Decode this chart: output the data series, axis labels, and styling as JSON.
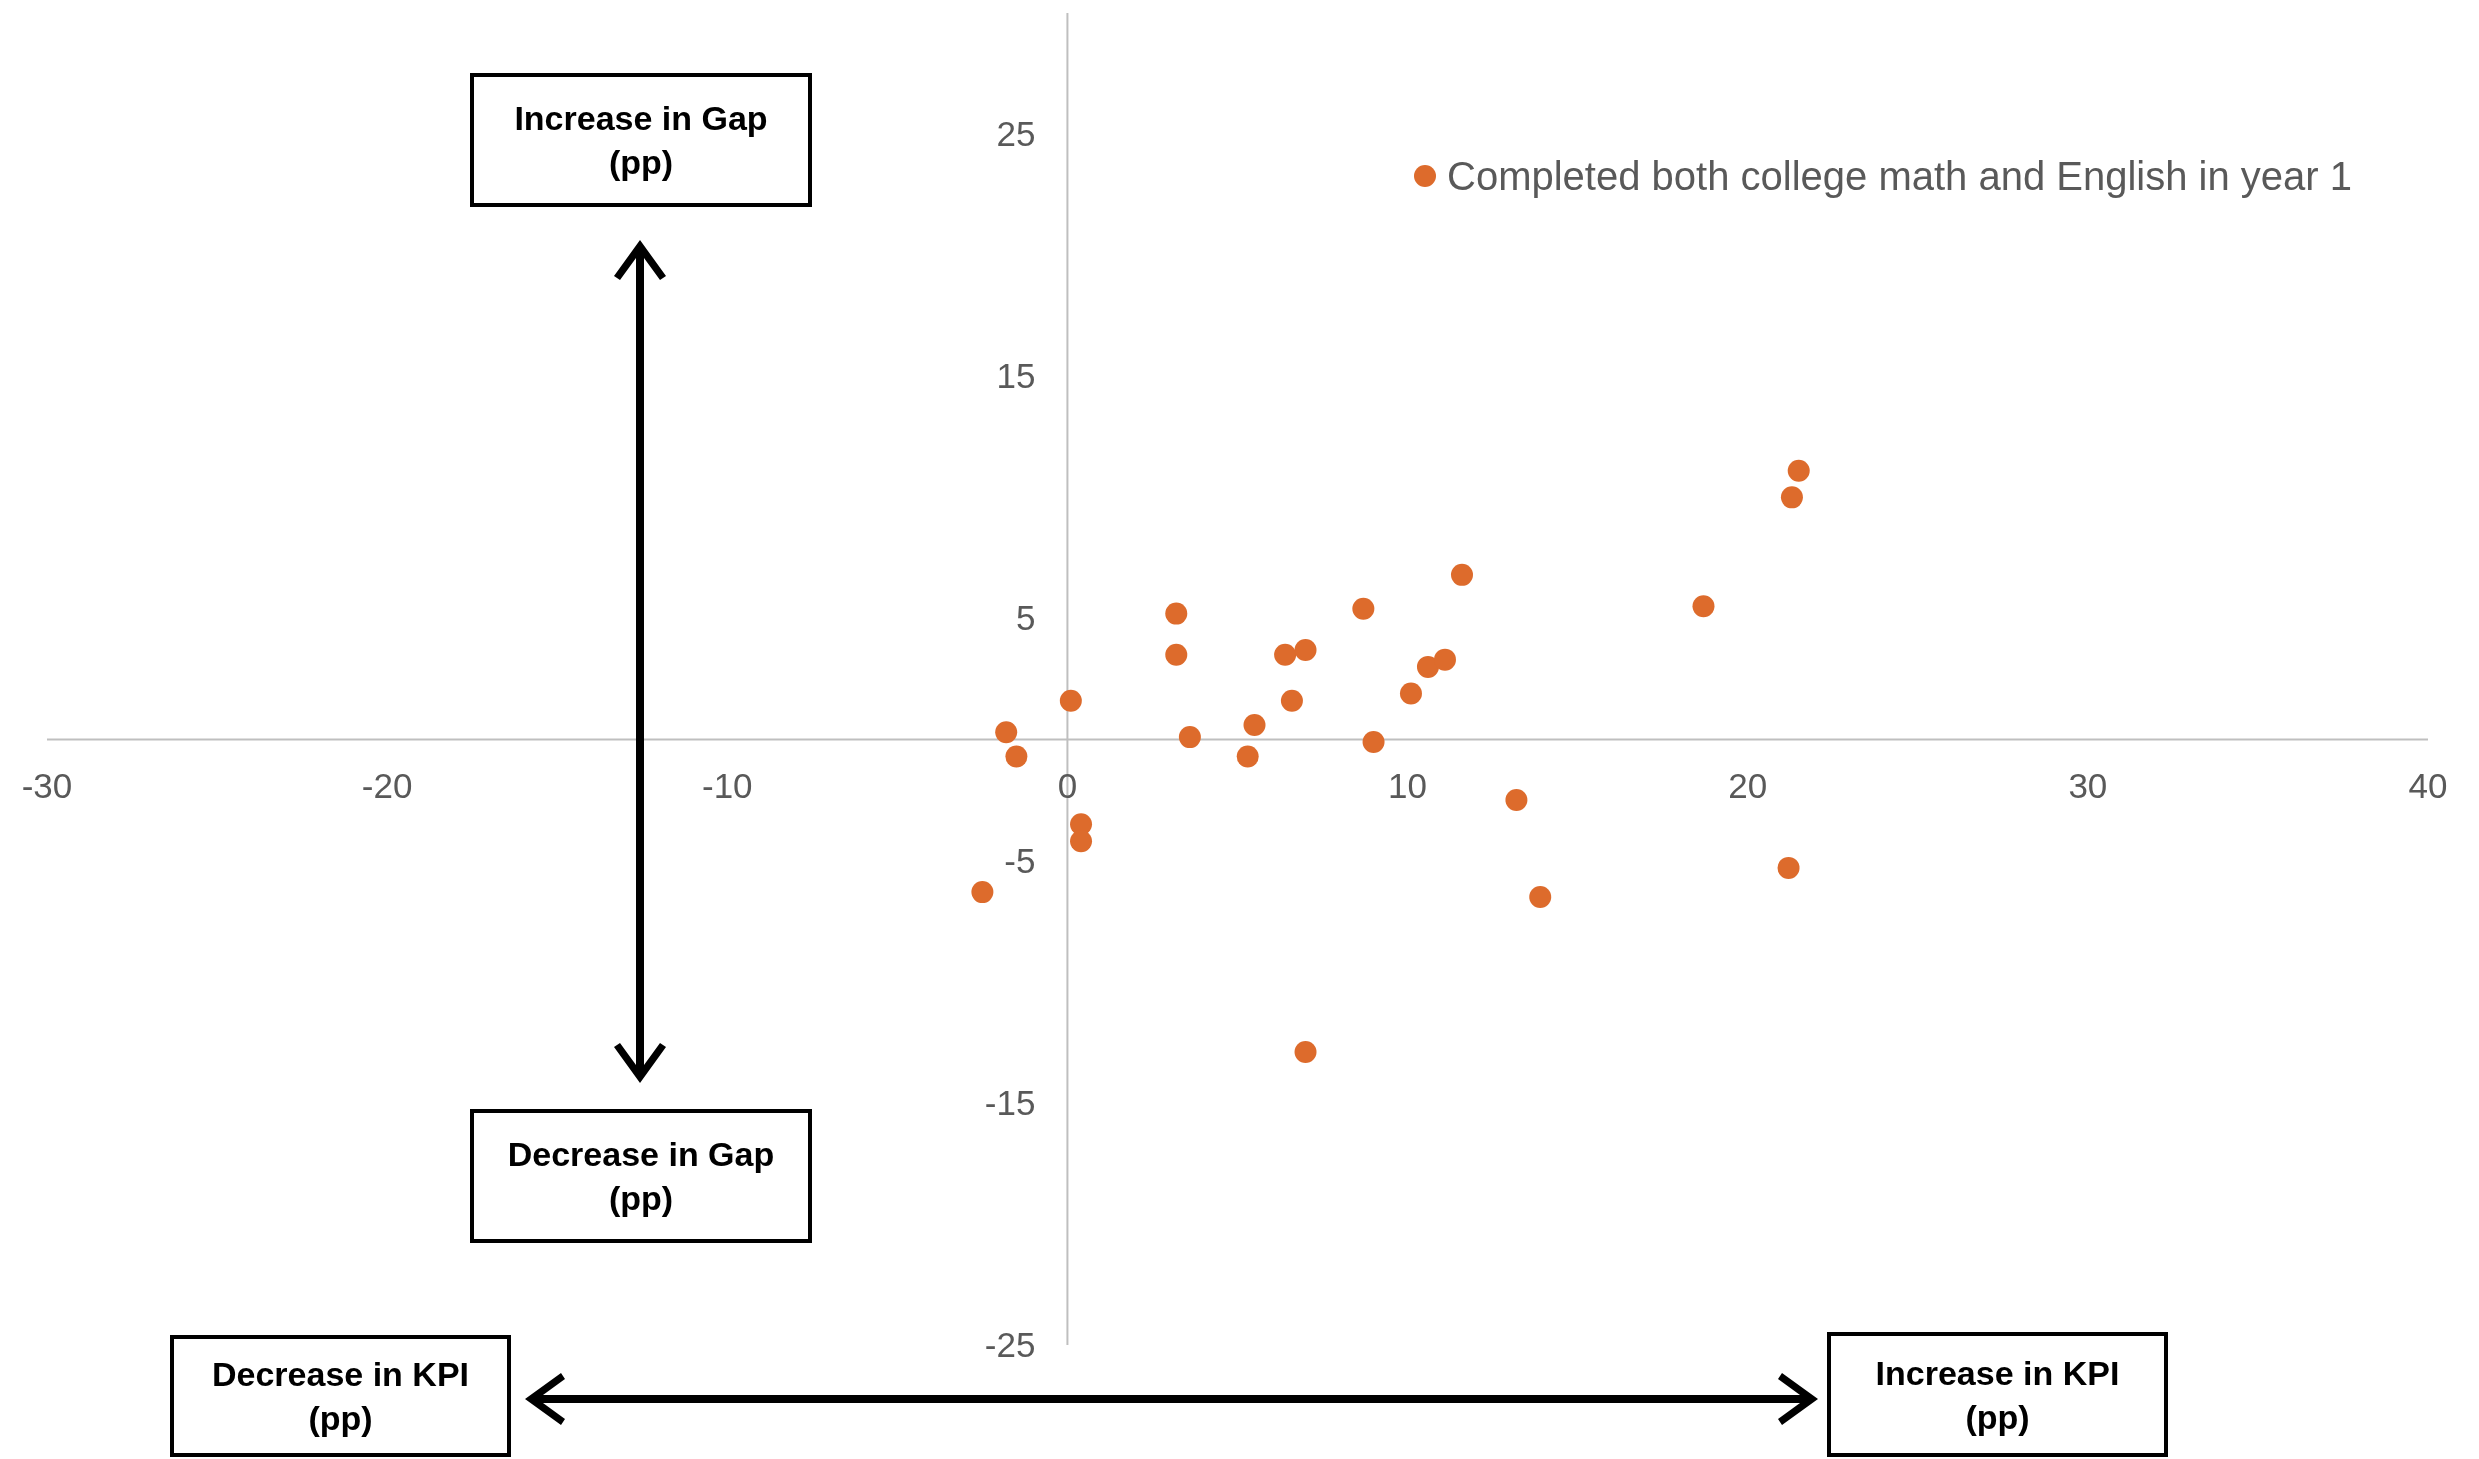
{
  "chart_data": {
    "type": "scatter",
    "xlim": [
      -30,
      40
    ],
    "ylim": [
      -25,
      30
    ],
    "xticks": [
      -30,
      -20,
      -10,
      0,
      10,
      20,
      30,
      40
    ],
    "yticks": [
      -25,
      -15,
      -5,
      5,
      15,
      25
    ],
    "grid": false,
    "legend": "top right",
    "marker": "circle",
    "series": [
      {
        "name": "Completed both college math and English in year 1",
        "color": "#dd6b2c",
        "x": [
          21.5,
          21.3,
          11.6,
          18.7,
          8.7,
          3.2,
          3.2,
          6.4,
          7.0,
          10.6,
          11.1,
          10.1,
          0.1,
          6.6,
          -1.8,
          3.6,
          5.5,
          -1.5,
          5.3,
          9.0,
          13.2,
          0.4,
          0.4,
          21.2,
          -2.5,
          13.9,
          7.0
        ],
        "values": [
          11.1,
          10.0,
          6.8,
          5.5,
          5.4,
          5.2,
          3.5,
          3.5,
          3.7,
          3.0,
          3.3,
          1.9,
          1.6,
          1.6,
          0.3,
          0.1,
          0.6,
          -0.7,
          -0.7,
          -0.1,
          -2.5,
          -3.5,
          -4.2,
          -5.3,
          -6.3,
          -6.5,
          -12.9
        ]
      }
    ],
    "annotations": [
      "Increase in Gap\n(pp)",
      "Decrease in Gap\n(pp)",
      "Decrease in KPI\n(pp)",
      "Increase in KPI\n(pp)"
    ]
  }
}
